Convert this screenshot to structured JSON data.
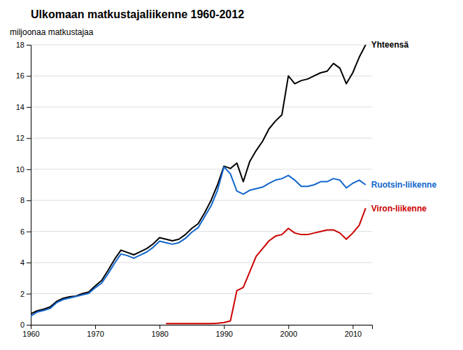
{
  "chart_data": {
    "type": "line",
    "title": "Ulkomaan matkustajaliikenne 1960-2012",
    "y_label": "miljoonaa matkustajaa",
    "x": [
      1960,
      1961,
      1962,
      1963,
      1964,
      1965,
      1966,
      1967,
      1968,
      1969,
      1970,
      1971,
      1972,
      1973,
      1974,
      1975,
      1976,
      1977,
      1978,
      1979,
      1980,
      1981,
      1982,
      1983,
      1984,
      1985,
      1986,
      1987,
      1988,
      1989,
      1990,
      1991,
      1992,
      1993,
      1994,
      1995,
      1996,
      1997,
      1998,
      1999,
      2000,
      2001,
      2002,
      2003,
      2004,
      2005,
      2006,
      2007,
      2008,
      2009,
      2010,
      2011,
      2012
    ],
    "series": [
      {
        "name": "Yhteensä",
        "color": "#000000",
        "values": [
          0.7,
          0.9,
          1.0,
          1.15,
          1.5,
          1.7,
          1.8,
          1.85,
          2.0,
          2.1,
          2.5,
          2.85,
          3.5,
          4.2,
          4.8,
          4.65,
          4.5,
          4.7,
          4.9,
          5.2,
          5.6,
          5.5,
          5.4,
          5.5,
          5.8,
          6.2,
          6.5,
          7.2,
          8.0,
          9.0,
          10.2,
          10.05,
          10.4,
          9.2,
          10.5,
          11.2,
          11.8,
          12.6,
          13.1,
          13.5,
          16.0,
          15.5,
          15.7,
          15.8,
          16.0,
          16.2,
          16.3,
          16.8,
          16.5,
          15.5,
          16.2,
          17.2,
          18.0
        ]
      },
      {
        "name": "Ruotsin-liikenne",
        "color": "#1166CC",
        "values": [
          0.55,
          0.82,
          0.92,
          1.05,
          1.42,
          1.62,
          1.72,
          1.82,
          1.92,
          2.02,
          2.38,
          2.68,
          3.28,
          3.95,
          4.55,
          4.45,
          4.28,
          4.48,
          4.68,
          4.98,
          5.38,
          5.28,
          5.18,
          5.28,
          5.55,
          5.95,
          6.25,
          6.95,
          7.65,
          8.65,
          10.15,
          9.7,
          8.6,
          8.4,
          8.65,
          8.75,
          8.85,
          9.1,
          9.3,
          9.4,
          9.6,
          9.3,
          8.9,
          8.9,
          9.0,
          9.2,
          9.2,
          9.4,
          9.3,
          8.8,
          9.1,
          9.3,
          9.0
        ]
      },
      {
        "name": "Viron-liikenne",
        "color": "#CC0000",
        "values": [
          null,
          null,
          null,
          null,
          null,
          null,
          null,
          null,
          null,
          null,
          null,
          null,
          null,
          null,
          null,
          null,
          null,
          null,
          null,
          null,
          null,
          0.08,
          0.08,
          0.08,
          0.08,
          0.08,
          0.08,
          0.08,
          0.08,
          0.1,
          0.15,
          0.25,
          2.2,
          2.4,
          3.4,
          4.4,
          4.9,
          5.4,
          5.7,
          5.8,
          6.2,
          5.9,
          5.8,
          5.8,
          5.9,
          6.0,
          6.1,
          6.1,
          5.9,
          5.5,
          5.9,
          6.4,
          7.5
        ]
      }
    ],
    "xlim": [
      1960,
      2013
    ],
    "ylim": [
      0,
      18
    ],
    "xticks": [
      1960,
      1970,
      1980,
      1990,
      2000,
      2010
    ],
    "yticks": [
      0,
      2,
      4,
      6,
      8,
      10,
      12,
      14,
      16,
      18
    ],
    "grid": true
  }
}
